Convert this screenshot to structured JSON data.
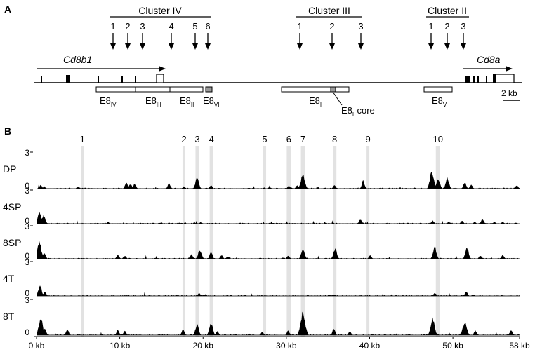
{
  "panel_a": {
    "label": "A",
    "clusters": [
      {
        "name": "Cluster IV",
        "arrows": [
          "1",
          "2",
          "3",
          "4",
          "5",
          "6"
        ]
      },
      {
        "name": "Cluster III",
        "arrows": [
          "1",
          "2",
          "3"
        ]
      },
      {
        "name": "Cluster II",
        "arrows": [
          "1",
          "2",
          "3"
        ]
      }
    ],
    "genes": {
      "left": "Cd8b1",
      "right": "Cd8a"
    },
    "scale_bar": "2 kb",
    "elements": [
      {
        "main": "E8",
        "sub": "IV"
      },
      {
        "main": "E8",
        "sub": "III"
      },
      {
        "main": "E8",
        "sub": "II"
      },
      {
        "main": "E8",
        "sub": "VI"
      },
      {
        "main": "E8",
        "sub": "I"
      },
      {
        "main": "E8",
        "sub": "I",
        "suffix": "-core"
      },
      {
        "main": "E8",
        "sub": "V"
      }
    ]
  },
  "panel_b": {
    "label": "B",
    "peak_numbers": [
      "1",
      "2",
      "3",
      "4",
      "5",
      "6",
      "7",
      "8",
      "9",
      "10"
    ],
    "y_max": "3",
    "y_min": "0",
    "tracks": [
      "DP",
      "4SP",
      "8SP",
      "4T",
      "8T"
    ],
    "x_ticks": [
      "0 kb",
      "10 kb",
      "20 kb",
      "30 kb",
      "40 kb",
      "50 kb",
      "58 kb"
    ],
    "colors": {
      "highlight": "#e2e2e2",
      "signal": "#000000",
      "grey_box": "#9a9a9a"
    }
  }
}
